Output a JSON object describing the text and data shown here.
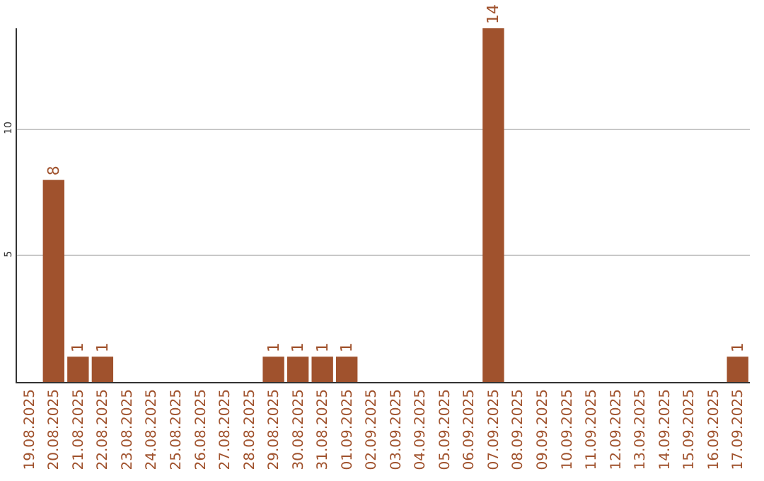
{
  "chart_data": {
    "type": "bar",
    "categories": [
      "19.08.2025",
      "20.08.2025",
      "21.08.2025",
      "22.08.2025",
      "23.08.2025",
      "24.08.2025",
      "25.08.2025",
      "26.08.2025",
      "27.08.2025",
      "28.08.2025",
      "29.08.2025",
      "30.08.2025",
      "31.08.2025",
      "01.09.2025",
      "02.09.2025",
      "03.09.2025",
      "04.09.2025",
      "05.09.2025",
      "06.09.2025",
      "07.09.2025",
      "08.09.2025",
      "09.09.2025",
      "10.09.2025",
      "11.09.2025",
      "12.09.2025",
      "13.09.2025",
      "14.09.2025",
      "15.09.2025",
      "16.09.2025",
      "17.09.2025"
    ],
    "values": [
      0,
      8,
      1,
      1,
      0,
      0,
      0,
      0,
      0,
      0,
      1,
      1,
      1,
      1,
      0,
      0,
      0,
      0,
      0,
      14,
      0,
      0,
      0,
      0,
      0,
      0,
      0,
      0,
      0,
      1
    ],
    "value_labels": [
      null,
      "8",
      "1",
      "1",
      null,
      null,
      null,
      null,
      null,
      null,
      "1",
      "1",
      "1",
      "1",
      null,
      null,
      null,
      null,
      null,
      "14",
      null,
      null,
      null,
      null,
      null,
      null,
      null,
      null,
      null,
      "1"
    ],
    "color": "#a0522d",
    "ylim": [
      0,
      14
    ],
    "yticks": [
      5,
      10
    ],
    "grid": "y"
  }
}
